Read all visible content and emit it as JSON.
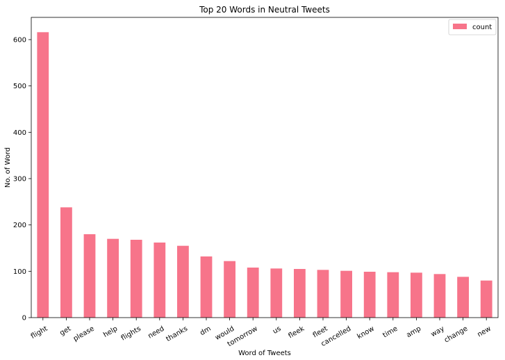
{
  "chart_data": {
    "type": "bar",
    "title": "Top 20 Words in Neutral Tweets",
    "xlabel": "Word of Tweets",
    "ylabel": "No. of Word",
    "categories": [
      "flight",
      "get",
      "please",
      "help",
      "flights",
      "need",
      "thanks",
      "dm",
      "would",
      "tomorrow",
      "us",
      "fleek",
      "fleet",
      "cancelled",
      "know",
      "time",
      "amp",
      "way",
      "change",
      "new"
    ],
    "series": [
      {
        "name": "count",
        "values": [
          616,
          238,
          180,
          170,
          168,
          162,
          155,
          132,
          122,
          108,
          106,
          105,
          103,
          101,
          99,
          98,
          97,
          94,
          88,
          80
        ]
      }
    ],
    "ylim": [
      0,
      648
    ],
    "yticks": [
      0,
      100,
      200,
      300,
      400,
      500,
      600
    ],
    "color": "#f7748a",
    "grid": false,
    "legend_position": "top-right"
  }
}
